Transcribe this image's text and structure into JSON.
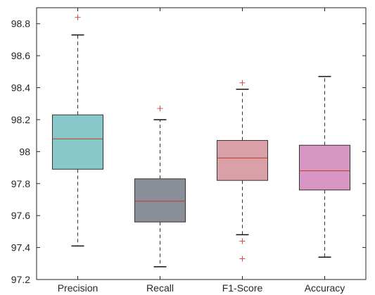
{
  "chart_data": {
    "type": "box",
    "title": "",
    "xlabel": "",
    "ylabel": "",
    "categories": [
      "Precision",
      "Recall",
      "F1-Score",
      "Accuracy"
    ],
    "ylim": [
      97.2,
      98.9
    ],
    "yticks": [
      97.2,
      97.4,
      97.6,
      97.8,
      98,
      98.2,
      98.4,
      98.6,
      98.8
    ],
    "ytick_labels": [
      "97.2",
      "97.4",
      "97.6",
      "97.8",
      "98",
      "98.2",
      "98.4",
      "98.6",
      "98.8"
    ],
    "grid": false,
    "series": [
      {
        "q1": 97.89,
        "median": 98.08,
        "q3": 98.23,
        "whisker_low": 97.41,
        "whisker_high": 98.73,
        "outliers": [
          98.84
        ]
      },
      {
        "q1": 97.56,
        "median": 97.69,
        "q3": 97.83,
        "whisker_low": 97.28,
        "whisker_high": 98.2,
        "outliers": [
          98.27
        ]
      },
      {
        "q1": 97.82,
        "median": 97.96,
        "q3": 98.07,
        "whisker_low": 97.48,
        "whisker_high": 98.39,
        "outliers": [
          98.43,
          97.44,
          97.33
        ]
      },
      {
        "q1": 97.76,
        "median": 97.88,
        "q3": 98.04,
        "whisker_low": 97.34,
        "whisker_high": 98.47,
        "outliers": []
      }
    ],
    "box_colors": [
      "#89c8c8",
      "#8a8e96",
      "#d9a0a8",
      "#d896c5"
    ],
    "median_color": "#c0392b",
    "outlier_color": "#e0464a",
    "axis_color": "#262626"
  }
}
